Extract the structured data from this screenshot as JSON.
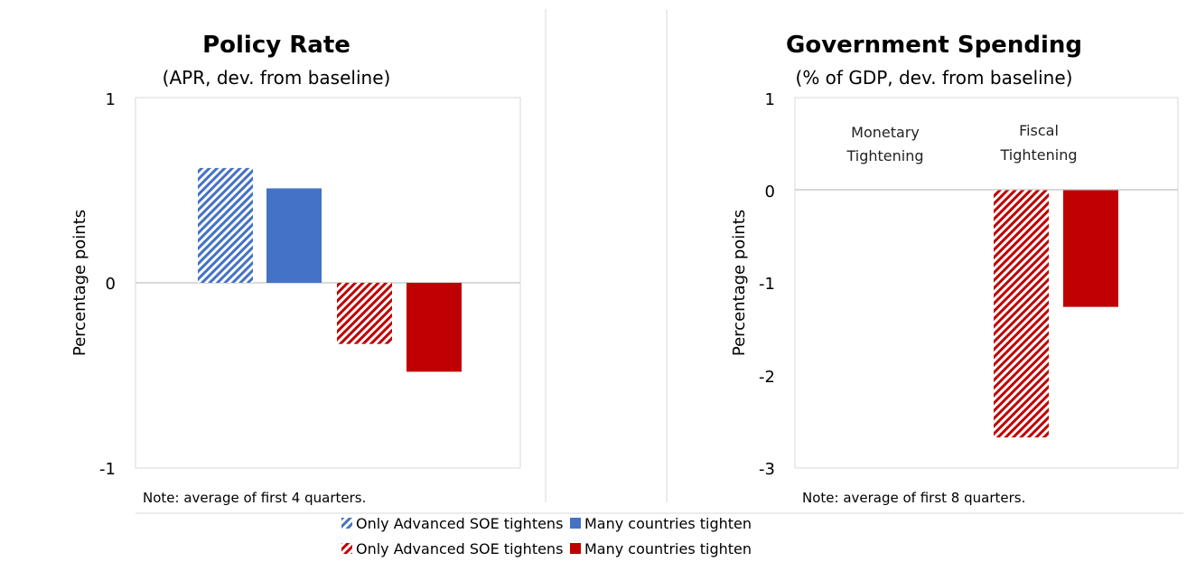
{
  "colors": {
    "blue": "#4472C4",
    "red": "#C00000"
  },
  "legend": {
    "entries": [
      {
        "label": "Only Advanced SOE tightens",
        "color": "#4472C4",
        "pattern": "hatched"
      },
      {
        "label": "Many countries tighten",
        "color": "#4472C4",
        "pattern": "solid"
      },
      {
        "label": "Only Advanced SOE tightens",
        "color": "#C00000",
        "pattern": "hatched"
      },
      {
        "label": "Many countries tighten",
        "color": "#C00000",
        "pattern": "solid"
      }
    ]
  },
  "chart_data": [
    {
      "type": "bar",
      "title": "Policy Rate",
      "subtitle": "(APR, dev. from baseline)",
      "ylabel": "Percentage points",
      "ylim": [
        -1,
        1
      ],
      "yticks": [
        "1",
        "0",
        "-1"
      ],
      "grid": false,
      "note": "Note: average of first 4 quarters.",
      "series": [
        {
          "name": "Only Advanced SOE tightens",
          "color": "#4472C4",
          "pattern": "hatched",
          "value": 0.62
        },
        {
          "name": "Many countries tighten",
          "color": "#4472C4",
          "pattern": "solid",
          "value": 0.51
        },
        {
          "name": "Only Advanced SOE tightens",
          "color": "#C00000",
          "pattern": "hatched",
          "value": -0.33
        },
        {
          "name": "Many countries tighten",
          "color": "#C00000",
          "pattern": "solid",
          "value": -0.48
        }
      ]
    },
    {
      "type": "bar",
      "title": "Government Spending",
      "subtitle": "(% of GDP, dev. from baseline)",
      "ylabel": "Percentage points",
      "ylim": [
        -3,
        1
      ],
      "yticks": [
        "1",
        "0",
        "-1",
        "-2",
        "-3"
      ],
      "grid": false,
      "note": "Note: average of first 8 quarters.",
      "annotations": [
        {
          "line1": "Monetary",
          "line2": "Tightening"
        },
        {
          "line1": "Fiscal",
          "line2": "Tightening"
        }
      ],
      "series": [
        {
          "name": "Only Advanced SOE tightens",
          "color": "#4472C4",
          "pattern": "hatched",
          "value": 0
        },
        {
          "name": "Many countries tighten",
          "color": "#4472C4",
          "pattern": "solid",
          "value": 0
        },
        {
          "name": "Only Advanced SOE tightens",
          "color": "#C00000",
          "pattern": "hatched",
          "value": -2.67
        },
        {
          "name": "Many countries tighten",
          "color": "#C00000",
          "pattern": "solid",
          "value": -1.26
        }
      ]
    }
  ]
}
